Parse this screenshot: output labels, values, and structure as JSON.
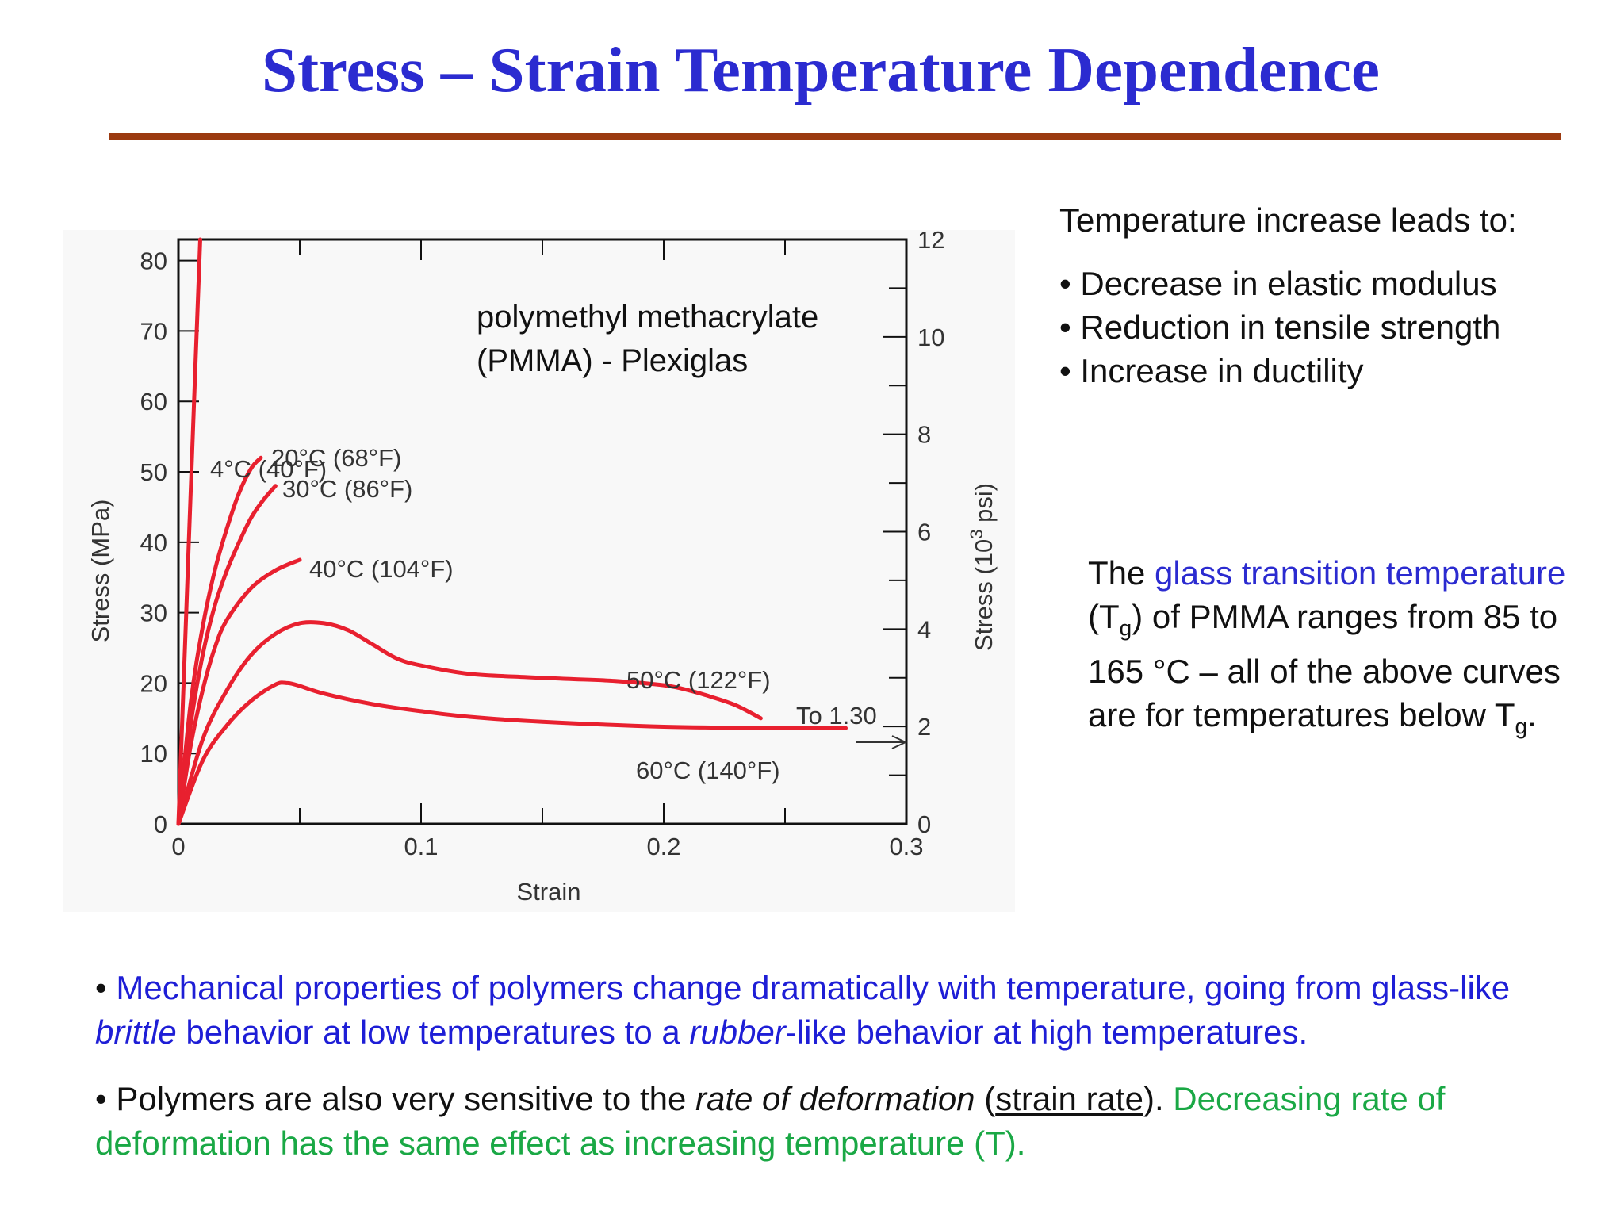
{
  "slide": {
    "title": "Stress – Strain Temperature Dependence"
  },
  "effects": {
    "heading": "Temperature increase leads to:",
    "items": [
      "Decrease in elastic modulus",
      "Reduction in tensile strength",
      "Increase in ductility"
    ]
  },
  "tg_note": {
    "lead": "The ",
    "term": "glass transition temperature",
    "open": " (T",
    "sub": "g",
    "rest": ") of PMMA ranges from 85 to 165 °C – all of the above curves are for temperatures below T",
    "end_sub": "g",
    "end": "."
  },
  "para1": {
    "bullet": "• ",
    "p1": "Mechanical properties of polymers change dramatically with temperature, going from glass-like ",
    "brittle": "brittle",
    "p2": " behavior at low temperatures to a ",
    "rubber": "rubber",
    "p3": "-like behavior at high temperatures."
  },
  "para2": {
    "bullet": "• ",
    "p1": "Polymers are also very sensitive to the ",
    "rate": "rate of deformation",
    "p2": " (",
    "strain_rate": "strain rate",
    "p3": "). ",
    "green": "Decreasing rate of deformation has the same effect as increasing temperature (T)."
  },
  "colors": {
    "title": "#2b2bd0",
    "rule": "#9b3a10",
    "curve": "#e8202f",
    "blue_text": "#1e1ed6",
    "green_text": "#1aa845"
  },
  "chart_data": {
    "type": "line",
    "material_label": [
      "polymethyl methacrylate",
      "(PMMA) - Plexiglas"
    ],
    "xlabel": "Strain",
    "ylabel": "Stress (MPa)",
    "ylabel_right": {
      "base": "Stress (10",
      "sup": "3",
      "end": " psi)"
    },
    "xlim": [
      0,
      0.3
    ],
    "ylim": [
      0,
      83
    ],
    "y2lim": [
      0,
      12
    ],
    "xticks": [
      0,
      0.1,
      0.2,
      0.3
    ],
    "xtick_labels": [
      "0",
      "0.1",
      "0.2",
      "0.3"
    ],
    "yticks": [
      0,
      10,
      20,
      30,
      40,
      50,
      60,
      70,
      80
    ],
    "ytick_labels": [
      "0",
      "10",
      "20",
      "30",
      "40",
      "50",
      "60",
      "70",
      "80"
    ],
    "y2ticks": [
      0,
      2,
      4,
      6,
      8,
      10,
      12
    ],
    "y2tick_labels": [
      "0",
      "2",
      "4",
      "6",
      "8",
      "10",
      "12"
    ],
    "series": [
      {
        "name": "4°C (40°F)",
        "x": [
          0,
          0.003,
          0.006,
          0.009
        ],
        "y": [
          0,
          28,
          56,
          83
        ]
      },
      {
        "name": "20°C (68°F)",
        "x": [
          0,
          0.005,
          0.01,
          0.015,
          0.02,
          0.025,
          0.03,
          0.034
        ],
        "y": [
          0,
          17,
          28,
          36,
          42,
          47,
          50.5,
          52
        ]
      },
      {
        "name": "30°C (86°F)",
        "x": [
          0,
          0.005,
          0.01,
          0.015,
          0.02,
          0.025,
          0.03,
          0.035,
          0.04
        ],
        "y": [
          0,
          14,
          24,
          31,
          36,
          40,
          43.5,
          46,
          48
        ]
      },
      {
        "name": "40°C (104°F)",
        "x": [
          0,
          0.005,
          0.01,
          0.015,
          0.02,
          0.03,
          0.04,
          0.05
        ],
        "y": [
          0,
          11,
          19,
          25,
          29,
          33.5,
          36,
          37.5
        ]
      },
      {
        "name": "50°C (122°F)",
        "x": [
          0,
          0.01,
          0.02,
          0.03,
          0.04,
          0.05,
          0.06,
          0.07,
          0.08,
          0.09,
          0.1,
          0.12,
          0.14,
          0.16,
          0.18,
          0.2,
          0.21,
          0.22,
          0.23,
          0.24
        ],
        "y": [
          0,
          12,
          19,
          24,
          27,
          28.5,
          28.5,
          27.5,
          25.5,
          23.5,
          22.5,
          21.3,
          20.9,
          20.6,
          20.3,
          19.7,
          19,
          18,
          16.8,
          15
        ]
      },
      {
        "name": "60°C (140°F)",
        "x": [
          0,
          0.01,
          0.02,
          0.03,
          0.04,
          0.045,
          0.05,
          0.06,
          0.08,
          0.1,
          0.12,
          0.15,
          0.2,
          0.25,
          0.275
        ],
        "y": [
          0,
          9,
          14,
          17.5,
          19.8,
          20,
          19.6,
          18.5,
          17,
          16,
          15.2,
          14.5,
          13.8,
          13.6,
          13.6
        ]
      }
    ],
    "annotations": [
      "To 1.30"
    ],
    "grid": false
  }
}
